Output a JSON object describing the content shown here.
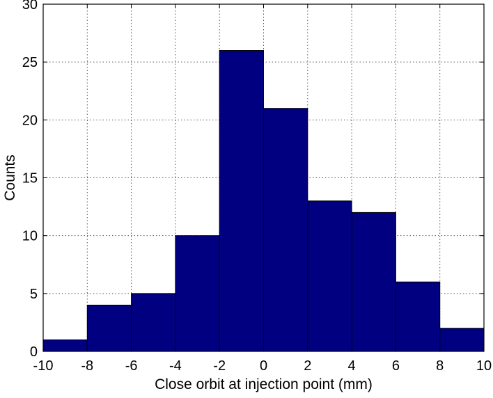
{
  "chart_data": {
    "type": "bar",
    "subtype": "histogram",
    "xlabel": "Close orbit at injection point (mm)",
    "ylabel": "Counts",
    "xlim": [
      -10,
      10
    ],
    "ylim": [
      0,
      30
    ],
    "xticks": [
      -10,
      -8,
      -6,
      -4,
      -2,
      0,
      2,
      4,
      6,
      8,
      10
    ],
    "yticks": [
      0,
      5,
      10,
      15,
      20,
      25,
      30
    ],
    "grid": true,
    "bins": [
      {
        "x0": -10,
        "x1": -8,
        "count": 1
      },
      {
        "x0": -8,
        "x1": -6,
        "count": 4
      },
      {
        "x0": -6,
        "x1": -4,
        "count": 5
      },
      {
        "x0": -4,
        "x1": -2,
        "count": 10
      },
      {
        "x0": -2,
        "x1": 0,
        "count": 26
      },
      {
        "x0": 0,
        "x1": 2,
        "count": 21
      },
      {
        "x0": 2,
        "x1": 4,
        "count": 13
      },
      {
        "x0": 4,
        "x1": 6,
        "count": 12
      },
      {
        "x0": 6,
        "x1": 8,
        "count": 6
      },
      {
        "x0": 8,
        "x1": 10,
        "count": 2
      }
    ],
    "colors": {
      "bar_fill": "#000080",
      "bar_edge": "#000000",
      "grid": "#555555"
    }
  }
}
